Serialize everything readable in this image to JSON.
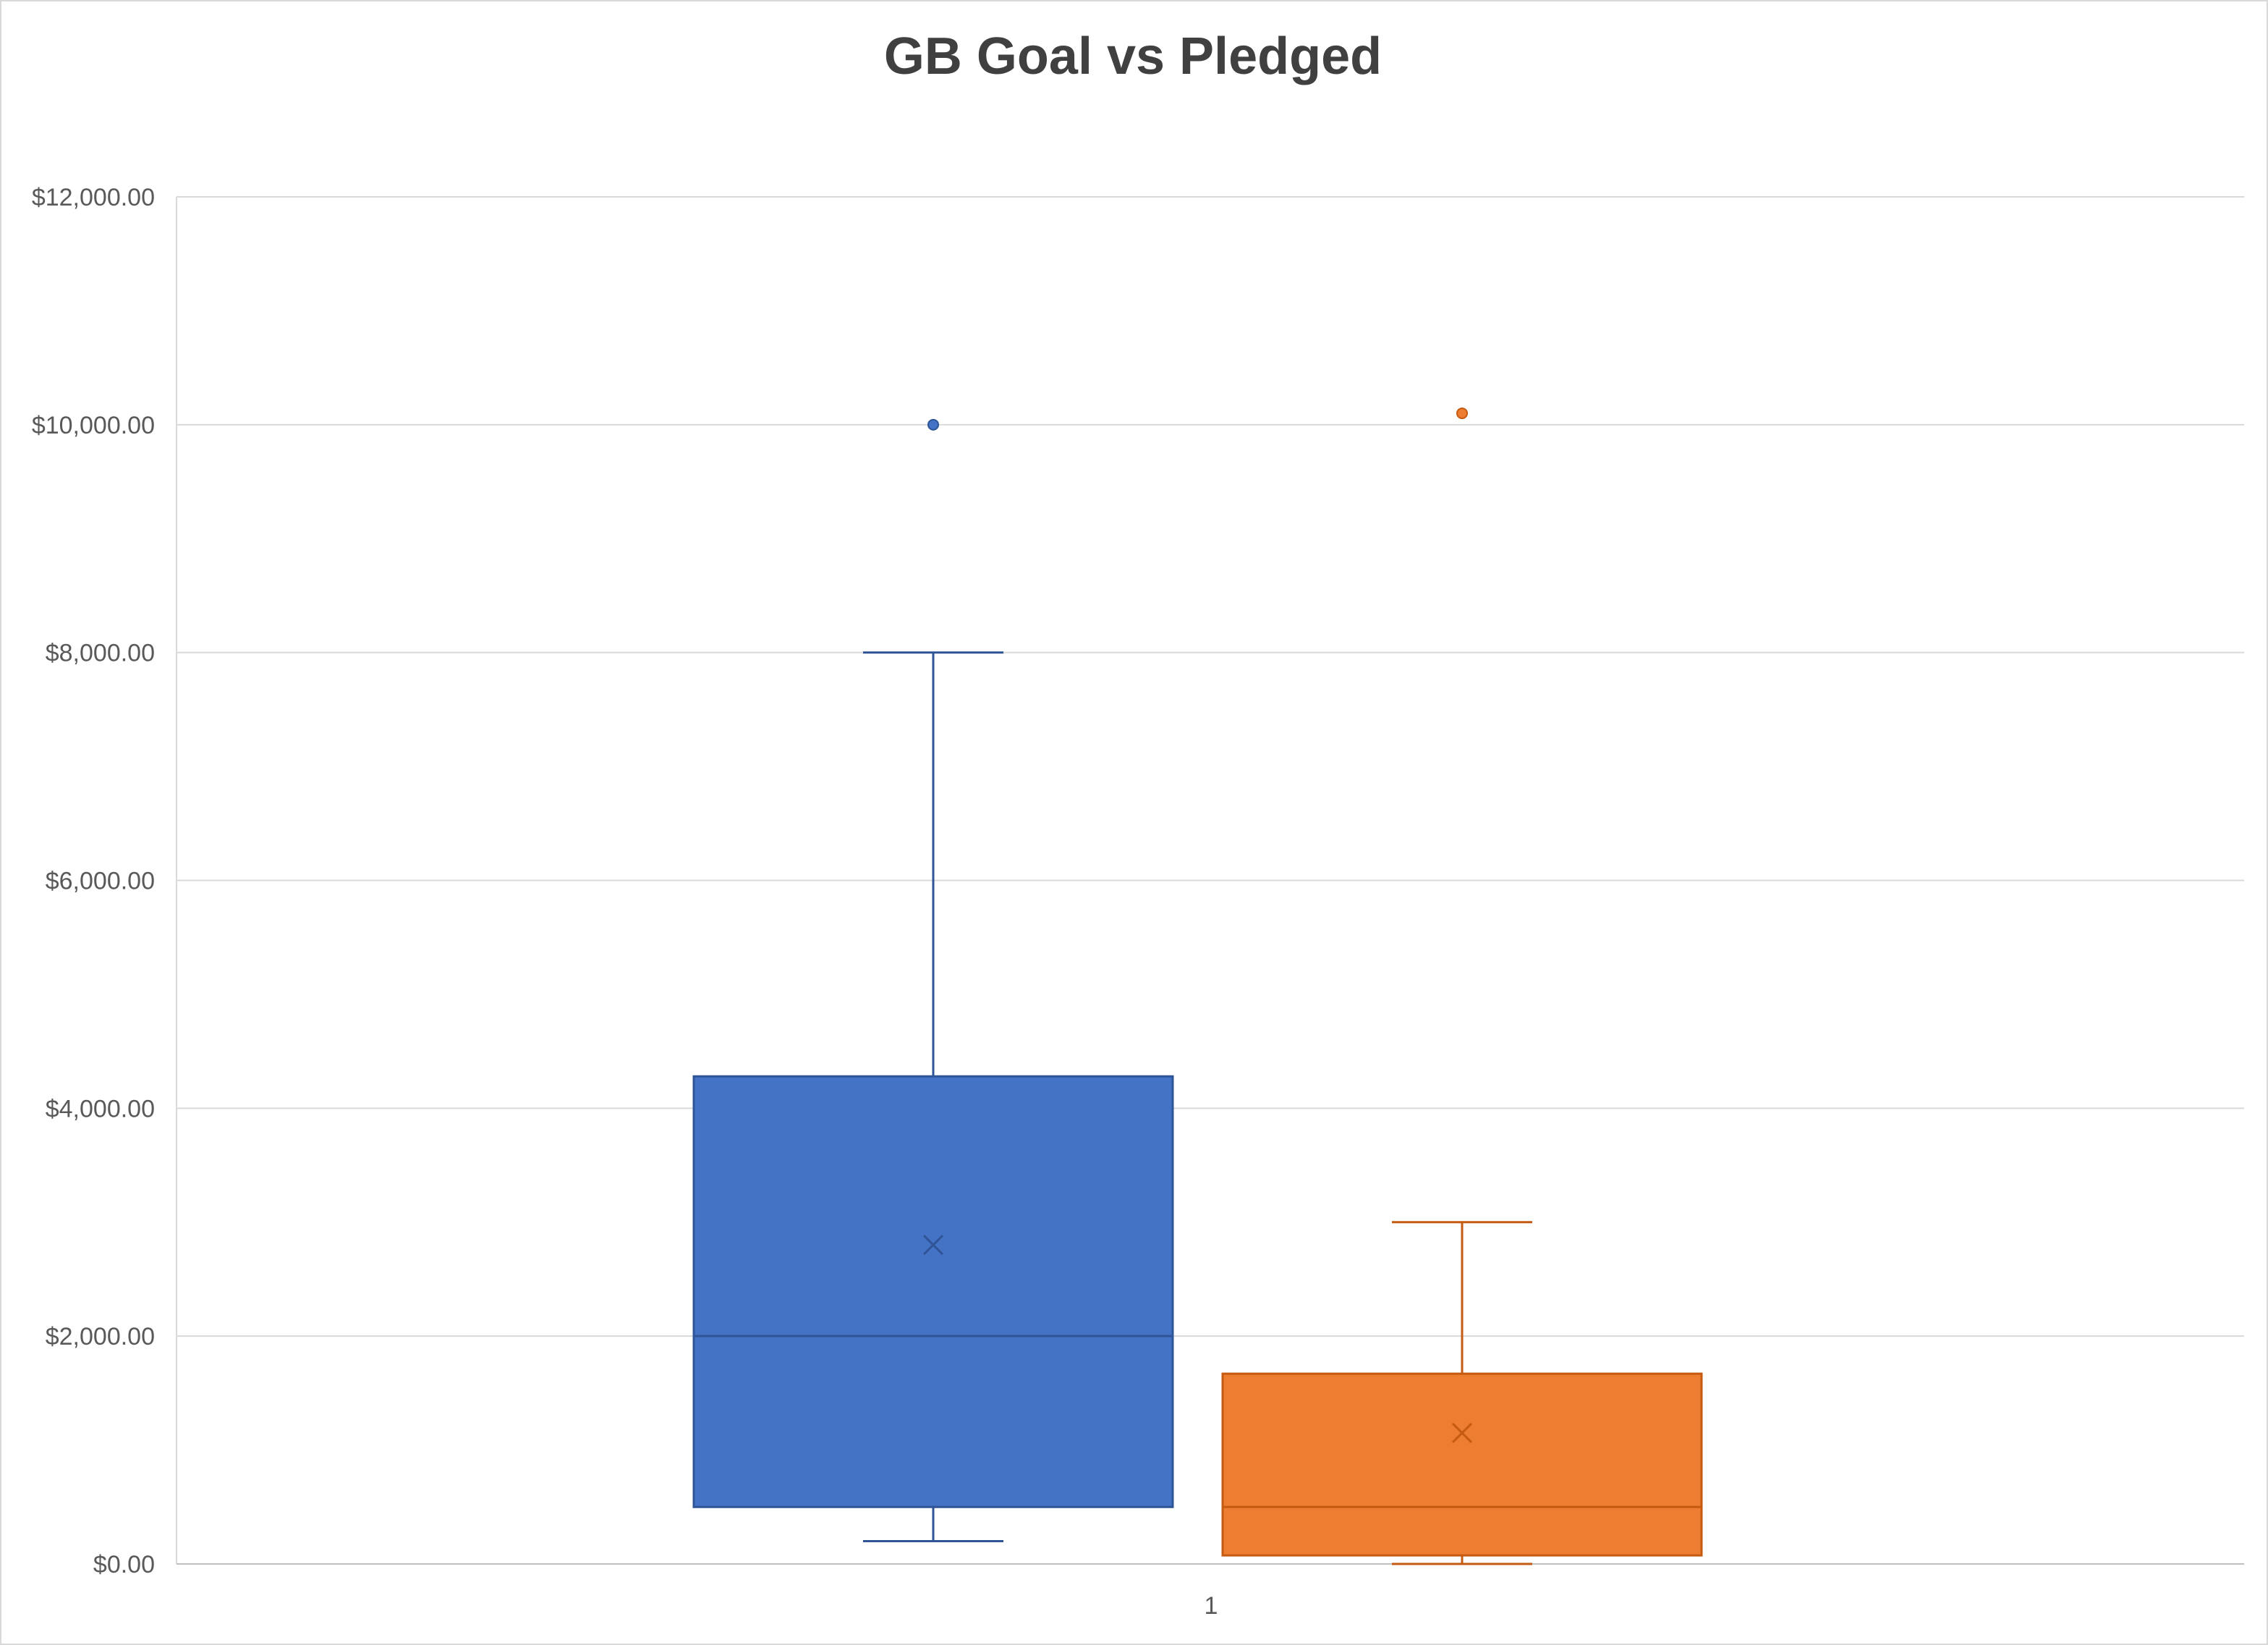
{
  "chart_data": {
    "type": "box",
    "title": "GB Goal vs Pledged",
    "xlabel": "",
    "ylabel": "",
    "categories": [
      "1"
    ],
    "ylim": [
      0,
      12000
    ],
    "y_tick_labels": [
      "$0.00",
      "$2,000.00",
      "$4,000.00",
      "$6,000.00",
      "$8,000.00",
      "$10,000.00",
      "$12,000.00"
    ],
    "y_ticks": [
      0,
      2000,
      4000,
      6000,
      8000,
      10000,
      12000
    ],
    "grid": true,
    "legend": "none",
    "series": [
      {
        "color": "#4472C4",
        "stroke": "#2F5597",
        "whisker_low": 200,
        "q1": 500,
        "median": 2000,
        "q3": 4280,
        "whisker_high": 8000,
        "mean": 2800,
        "outliers": [
          10000
        ]
      },
      {
        "color": "#ED7D31",
        "stroke": "#C55A11",
        "whisker_low": 0,
        "q1": 75,
        "median": 500,
        "q3": 1670,
        "whisker_high": 3000,
        "mean": 1150,
        "outliers": [
          10100
        ]
      }
    ]
  }
}
